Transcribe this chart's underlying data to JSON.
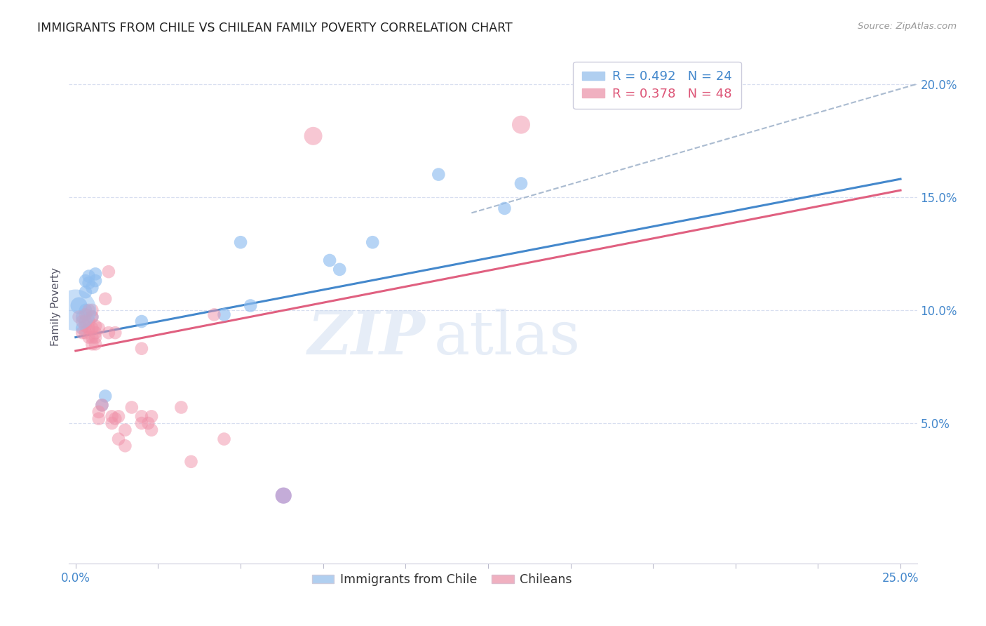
{
  "title": "IMMIGRANTS FROM CHILE VS CHILEAN FAMILY POVERTY CORRELATION CHART",
  "source": "Source: ZipAtlas.com",
  "ylabel": "Family Poverty",
  "ytick_labels": [
    "5.0%",
    "10.0%",
    "15.0%",
    "20.0%"
  ],
  "ytick_values": [
    0.05,
    0.1,
    0.15,
    0.2
  ],
  "xtick_values": [
    0.0,
    0.025,
    0.05,
    0.075,
    0.1,
    0.125,
    0.15,
    0.175,
    0.2,
    0.225,
    0.25
  ],
  "xlim": [
    -0.002,
    0.255
  ],
  "ylim": [
    -0.012,
    0.215
  ],
  "legend_label_blue": "Immigrants from Chile",
  "legend_label_pink": "Chileans",
  "blue_color": "#90bef0",
  "pink_color": "#f090a8",
  "blue_scatter": [
    [
      0.001,
      0.102
    ],
    [
      0.002,
      0.097
    ],
    [
      0.002,
      0.092
    ],
    [
      0.003,
      0.1
    ],
    [
      0.003,
      0.108
    ],
    [
      0.003,
      0.113
    ],
    [
      0.004,
      0.115
    ],
    [
      0.004,
      0.112
    ],
    [
      0.005,
      0.097
    ],
    [
      0.005,
      0.11
    ],
    [
      0.006,
      0.113
    ],
    [
      0.006,
      0.116
    ],
    [
      0.008,
      0.058
    ],
    [
      0.009,
      0.062
    ],
    [
      0.02,
      0.095
    ],
    [
      0.045,
      0.098
    ],
    [
      0.05,
      0.13
    ],
    [
      0.053,
      0.102
    ],
    [
      0.077,
      0.122
    ],
    [
      0.08,
      0.118
    ],
    [
      0.09,
      0.13
    ],
    [
      0.11,
      0.16
    ],
    [
      0.13,
      0.145
    ],
    [
      0.135,
      0.156
    ]
  ],
  "pink_scatter": [
    [
      0.001,
      0.097
    ],
    [
      0.002,
      0.09
    ],
    [
      0.002,
      0.095
    ],
    [
      0.003,
      0.098
    ],
    [
      0.003,
      0.093
    ],
    [
      0.003,
      0.09
    ],
    [
      0.003,
      0.095
    ],
    [
      0.004,
      0.095
    ],
    [
      0.004,
      0.1
    ],
    [
      0.004,
      0.088
    ],
    [
      0.004,
      0.092
    ],
    [
      0.005,
      0.092
    ],
    [
      0.005,
      0.097
    ],
    [
      0.005,
      0.1
    ],
    [
      0.005,
      0.088
    ],
    [
      0.005,
      0.085
    ],
    [
      0.006,
      0.09
    ],
    [
      0.006,
      0.085
    ],
    [
      0.006,
      0.093
    ],
    [
      0.006,
      0.088
    ],
    [
      0.007,
      0.092
    ],
    [
      0.007,
      0.055
    ],
    [
      0.007,
      0.052
    ],
    [
      0.008,
      0.058
    ],
    [
      0.009,
      0.105
    ],
    [
      0.01,
      0.117
    ],
    [
      0.01,
      0.09
    ],
    [
      0.011,
      0.053
    ],
    [
      0.011,
      0.05
    ],
    [
      0.012,
      0.09
    ],
    [
      0.012,
      0.052
    ],
    [
      0.013,
      0.053
    ],
    [
      0.013,
      0.043
    ],
    [
      0.015,
      0.047
    ],
    [
      0.015,
      0.04
    ],
    [
      0.017,
      0.057
    ],
    [
      0.02,
      0.083
    ],
    [
      0.02,
      0.053
    ],
    [
      0.02,
      0.05
    ],
    [
      0.022,
      0.05
    ],
    [
      0.023,
      0.053
    ],
    [
      0.023,
      0.047
    ],
    [
      0.032,
      0.057
    ],
    [
      0.035,
      0.033
    ],
    [
      0.042,
      0.098
    ],
    [
      0.045,
      0.043
    ],
    [
      0.072,
      0.177
    ],
    [
      0.135,
      0.182
    ]
  ],
  "purple_pt": [
    0.063,
    0.018
  ],
  "blue_line": {
    "x0": 0.0,
    "y0": 0.088,
    "x1": 0.25,
    "y1": 0.158
  },
  "pink_line": {
    "x0": 0.0,
    "y0": 0.082,
    "x1": 0.25,
    "y1": 0.153
  },
  "dashed_line": {
    "x0": 0.12,
    "y0": 0.143,
    "x1": 0.255,
    "y1": 0.2
  },
  "background_color": "#ffffff",
  "grid_color": "#d8dff0",
  "axis_color": "#4488cc",
  "title_color": "#222222",
  "title_fontsize": 12.5,
  "watermark_zip": "ZIP",
  "watermark_atlas": "atlas",
  "watermark_color": "#c8d8ee",
  "watermark_alpha": 0.45
}
